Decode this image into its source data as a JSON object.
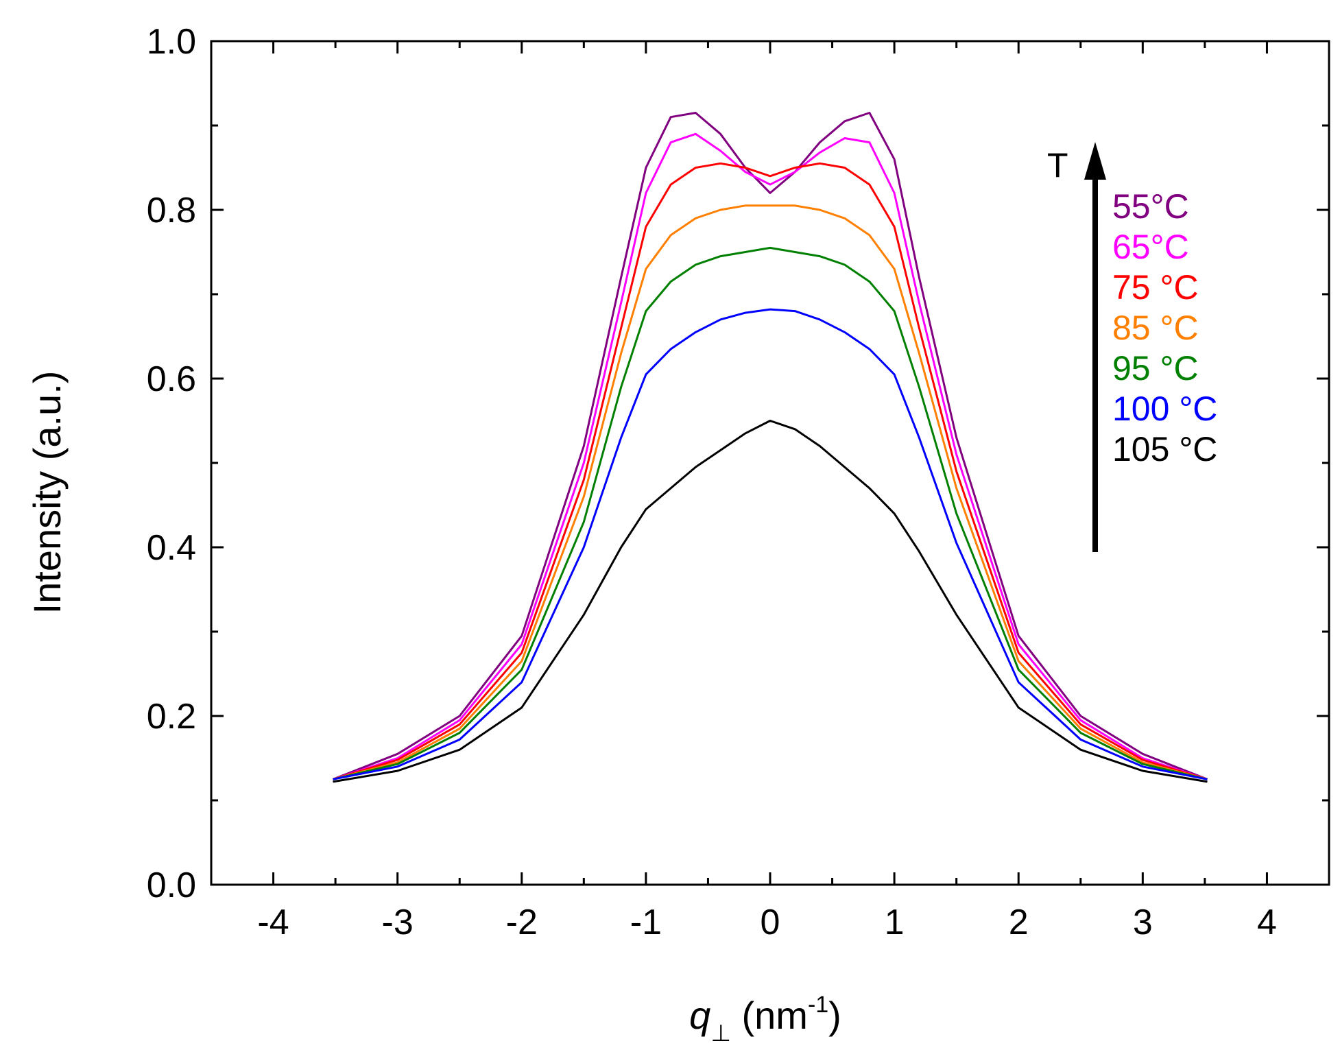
{
  "chart_data": {
    "type": "line",
    "title": "",
    "xlabel": {
      "symbol": "q",
      "subscript": "⊥",
      "unit": " (nm",
      "unit_sup": "-1",
      "unit_close": ")"
    },
    "ylabel": "Intensity (a.u.)",
    "xlim": [
      -4.5,
      4.5
    ],
    "ylim": [
      0.0,
      1.0
    ],
    "x_ticks": [
      -4,
      -3,
      -2,
      -1,
      0,
      1,
      2,
      3,
      4
    ],
    "x_tick_labels": [
      "-4",
      "-3",
      "-2",
      "-1",
      "0",
      "1",
      "2",
      "3",
      "4"
    ],
    "y_ticks": [
      0.0,
      0.2,
      0.4,
      0.6,
      0.8,
      1.0
    ],
    "y_tick_labels": [
      "0.0",
      "0.2",
      "0.4",
      "0.6",
      "0.8",
      "1.0"
    ],
    "grid": false,
    "arrow_label": "T",
    "legend_position": "right",
    "series": [
      {
        "name": "55°C",
        "color": "#800080",
        "x": [
          -3.52,
          -3.0,
          -2.5,
          -2.0,
          -1.5,
          -1.2,
          -1.0,
          -0.8,
          -0.6,
          -0.4,
          -0.2,
          0.0,
          0.2,
          0.4,
          0.6,
          0.8,
          1.0,
          1.2,
          1.5,
          2.0,
          2.5,
          3.0,
          3.52
        ],
        "y": [
          0.125,
          0.155,
          0.2,
          0.295,
          0.52,
          0.72,
          0.85,
          0.91,
          0.915,
          0.89,
          0.85,
          0.82,
          0.845,
          0.88,
          0.905,
          0.915,
          0.86,
          0.72,
          0.53,
          0.295,
          0.2,
          0.155,
          0.125
        ]
      },
      {
        "name": "65°C",
        "color": "#ff00ff",
        "x": [
          -3.52,
          -3.0,
          -2.5,
          -2.0,
          -1.5,
          -1.2,
          -1.0,
          -0.8,
          -0.6,
          -0.4,
          -0.2,
          0.0,
          0.2,
          0.4,
          0.6,
          0.8,
          1.0,
          1.2,
          1.5,
          2.0,
          2.5,
          3.0,
          3.52
        ],
        "y": [
          0.125,
          0.15,
          0.195,
          0.285,
          0.5,
          0.69,
          0.82,
          0.88,
          0.89,
          0.87,
          0.845,
          0.83,
          0.845,
          0.868,
          0.885,
          0.88,
          0.82,
          0.69,
          0.51,
          0.285,
          0.195,
          0.15,
          0.125
        ]
      },
      {
        "name": "75 °C",
        "color": "#ff0000",
        "x": [
          -3.52,
          -3.0,
          -2.5,
          -2.0,
          -1.5,
          -1.2,
          -1.0,
          -0.8,
          -0.6,
          -0.4,
          -0.2,
          0.0,
          0.2,
          0.4,
          0.6,
          0.8,
          1.0,
          1.2,
          1.5,
          2.0,
          2.5,
          3.0,
          3.52
        ],
        "y": [
          0.125,
          0.148,
          0.19,
          0.275,
          0.48,
          0.66,
          0.78,
          0.83,
          0.85,
          0.855,
          0.85,
          0.84,
          0.85,
          0.855,
          0.85,
          0.83,
          0.78,
          0.66,
          0.49,
          0.275,
          0.19,
          0.148,
          0.125
        ]
      },
      {
        "name": "85 °C",
        "color": "#ff8000",
        "x": [
          -3.52,
          -3.0,
          -2.5,
          -2.0,
          -1.5,
          -1.2,
          -1.0,
          -0.8,
          -0.6,
          -0.4,
          -0.2,
          0.0,
          0.2,
          0.4,
          0.6,
          0.8,
          1.0,
          1.2,
          1.5,
          2.0,
          2.5,
          3.0,
          3.52
        ],
        "y": [
          0.125,
          0.145,
          0.185,
          0.265,
          0.46,
          0.63,
          0.73,
          0.77,
          0.79,
          0.8,
          0.805,
          0.805,
          0.805,
          0.8,
          0.79,
          0.77,
          0.73,
          0.63,
          0.47,
          0.265,
          0.185,
          0.145,
          0.125
        ]
      },
      {
        "name": "95 °C",
        "color": "#008000",
        "x": [
          -3.52,
          -3.0,
          -2.5,
          -2.0,
          -1.5,
          -1.2,
          -1.0,
          -0.8,
          -0.6,
          -0.4,
          -0.2,
          0.0,
          0.2,
          0.4,
          0.6,
          0.8,
          1.0,
          1.2,
          1.5,
          2.0,
          2.5,
          3.0,
          3.52
        ],
        "y": [
          0.125,
          0.143,
          0.18,
          0.255,
          0.43,
          0.59,
          0.68,
          0.715,
          0.735,
          0.745,
          0.75,
          0.755,
          0.75,
          0.745,
          0.735,
          0.715,
          0.68,
          0.59,
          0.44,
          0.255,
          0.18,
          0.143,
          0.125
        ]
      },
      {
        "name": "100 °C",
        "color": "#0000ff",
        "x": [
          -3.52,
          -3.0,
          -2.5,
          -2.0,
          -1.5,
          -1.2,
          -1.0,
          -0.8,
          -0.6,
          -0.4,
          -0.2,
          0.0,
          0.2,
          0.4,
          0.6,
          0.8,
          1.0,
          1.2,
          1.5,
          2.0,
          2.5,
          3.0,
          3.52
        ],
        "y": [
          0.125,
          0.14,
          0.172,
          0.24,
          0.4,
          0.53,
          0.605,
          0.635,
          0.655,
          0.67,
          0.678,
          0.682,
          0.68,
          0.67,
          0.655,
          0.635,
          0.605,
          0.53,
          0.405,
          0.24,
          0.172,
          0.14,
          0.125
        ]
      },
      {
        "name": "105 °C",
        "color": "#000000",
        "x": [
          -3.52,
          -3.0,
          -2.5,
          -2.0,
          -1.5,
          -1.2,
          -1.0,
          -0.8,
          -0.6,
          -0.4,
          -0.2,
          0.0,
          0.2,
          0.4,
          0.6,
          0.8,
          1.0,
          1.2,
          1.5,
          2.0,
          2.5,
          3.0,
          3.52
        ],
        "y": [
          0.122,
          0.135,
          0.16,
          0.21,
          0.32,
          0.4,
          0.445,
          0.47,
          0.495,
          0.515,
          0.535,
          0.55,
          0.54,
          0.52,
          0.495,
          0.47,
          0.44,
          0.395,
          0.32,
          0.21,
          0.16,
          0.135,
          0.122
        ]
      }
    ]
  }
}
